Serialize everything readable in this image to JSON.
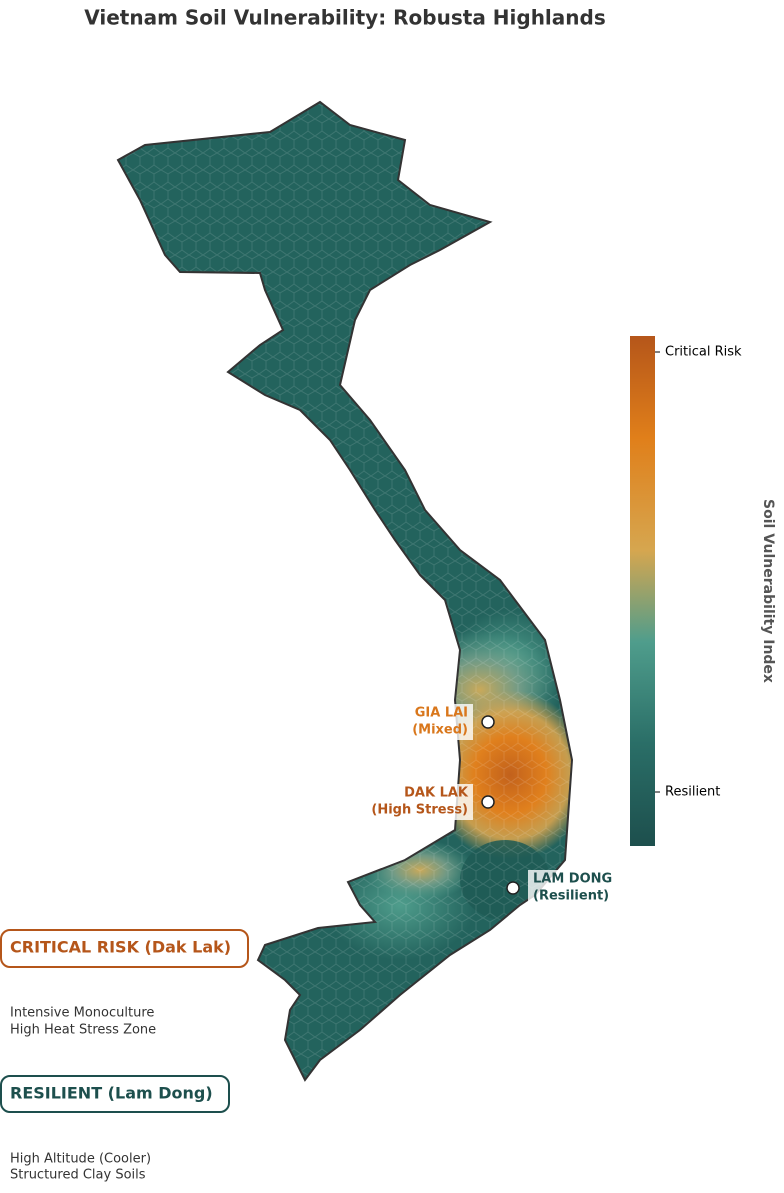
{
  "title": "Vietnam Soil Vulnerability: Robusta Highlands",
  "colorbar": {
    "label": "Soil Vulnerability Index",
    "ticks": [
      "Critical Risk",
      "Resilient"
    ]
  },
  "sites": [
    {
      "name": "GIA LAI",
      "note": "(Mixed)"
    },
    {
      "name": "DAK LAK",
      "note": "(High Stress)"
    },
    {
      "name": "LAM DONG",
      "note": "(Resilient)"
    }
  ],
  "callouts": [
    {
      "heading": "CRITICAL RISK (Dak Lak)",
      "lines": [
        "Intensive Monoculture",
        "High Heat Stress Zone"
      ]
    },
    {
      "heading": "RESILIENT (Lam Dong)",
      "lines": [
        "High Altitude (Cooler)",
        "Structured Clay Soils"
      ]
    }
  ]
}
